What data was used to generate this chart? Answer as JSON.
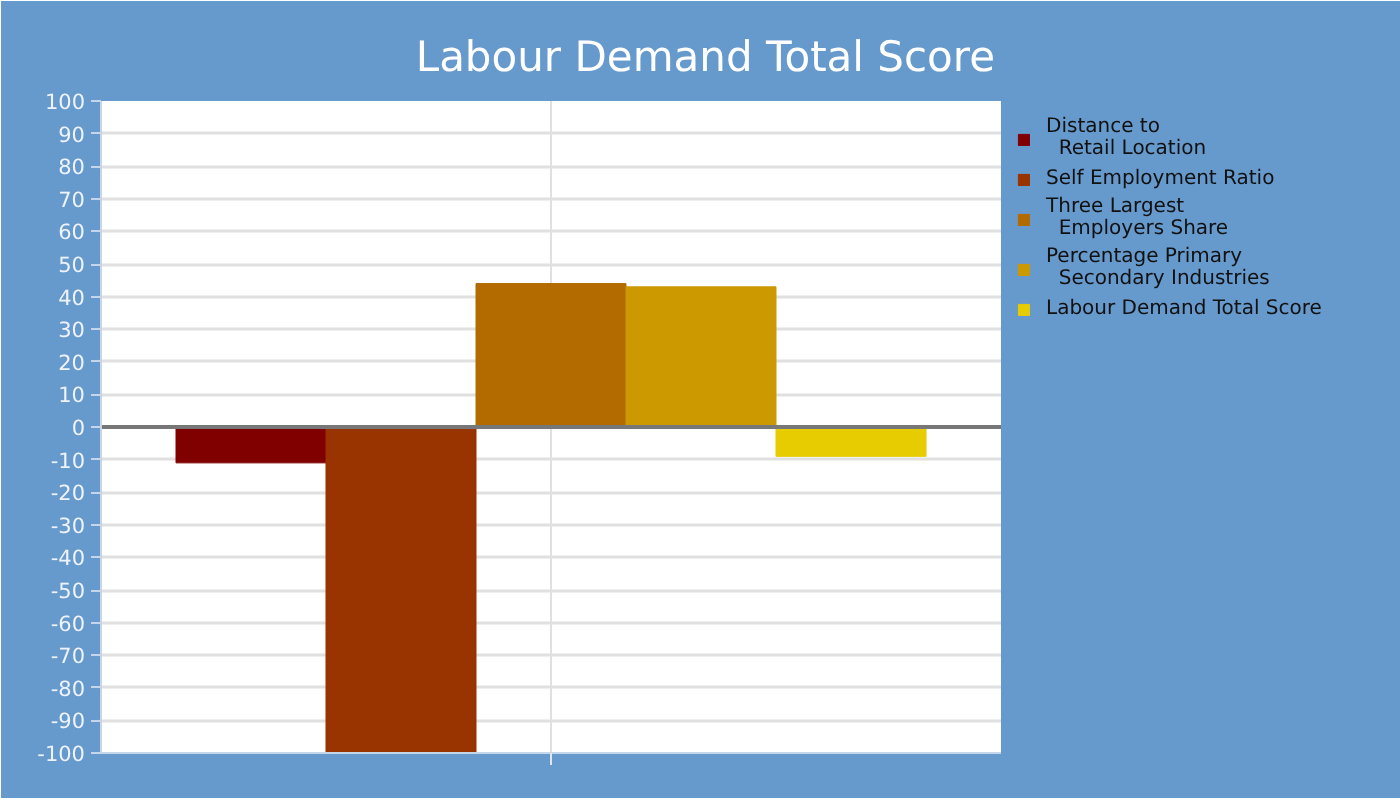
{
  "chart_data": {
    "type": "bar",
    "title": "Labour Demand Total Score",
    "categories": [
      null
    ],
    "series": [
      {
        "name": "Distance to Retail Location",
        "color": "#800000",
        "values": [
          -11
        ]
      },
      {
        "name": "Self Employment Ratio",
        "color": "#993300",
        "values": [
          -100
        ]
      },
      {
        "name": "Three Largest Employers Share",
        "color": "#b36b00",
        "values": [
          44
        ]
      },
      {
        "name": "Percentage Primary Secondary Industries",
        "color": "#cc9900",
        "values": [
          43
        ]
      },
      {
        "name": "Labour Demand Total Score",
        "color": "#e6cc00",
        "values": [
          -9
        ]
      }
    ],
    "ylim": [
      -100,
      100
    ],
    "yticks": [
      -100,
      -90,
      -80,
      -70,
      -60,
      -50,
      -40,
      -30,
      -20,
      -10,
      0,
      10,
      20,
      30,
      40,
      50,
      60,
      70,
      80,
      90,
      100
    ],
    "grid": true,
    "legend": "right"
  }
}
